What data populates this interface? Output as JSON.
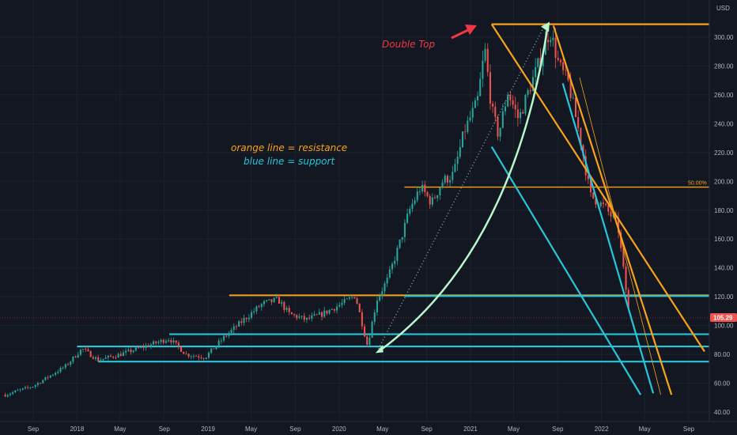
{
  "chart_data": {
    "type": "candlestick",
    "currency_label": "USD",
    "y_axis": {
      "ticks": [
        40,
        60,
        80,
        100,
        120,
        140,
        160,
        180,
        200,
        220,
        240,
        260,
        280,
        300
      ],
      "tick_labels": [
        "40.00",
        "60.00",
        "80.00",
        "100.00",
        "120.00",
        "140.00",
        "160.00",
        "180.00",
        "200.00",
        "220.00",
        "240.00",
        "260.00",
        "280.00",
        "300.00"
      ],
      "ylim": [
        35,
        318
      ]
    },
    "x_axis": {
      "tick_labels": [
        "Sep",
        "2018",
        "May",
        "Sep",
        "2019",
        "May",
        "Sep",
        "2020",
        "May",
        "Sep",
        "2021",
        "May",
        "Sep",
        "2022",
        "May",
        "Sep"
      ],
      "tick_dates": [
        "2017-09-01",
        "2018-01-01",
        "2018-05-01",
        "2018-09-01",
        "2019-01-01",
        "2019-05-01",
        "2019-09-01",
        "2020-01-01",
        "2020-05-01",
        "2020-09-01",
        "2021-01-01",
        "2021-05-01",
        "2021-09-01",
        "2022-01-01",
        "2022-05-01",
        "2022-09-01"
      ]
    },
    "last_price": "105.29",
    "fib_label": "50.00%",
    "colors": {
      "background": "#131722",
      "up": "#26a69a",
      "down": "#ef5350",
      "resistance": "#f7a21b",
      "support": "#26c6da",
      "arc": "#b9f6ca",
      "annotation_red": "#f23645"
    },
    "price_path": [
      [
        "2017-06-15",
        52
      ],
      [
        "2017-09-01",
        58
      ],
      [
        "2017-12-01",
        72
      ],
      [
        "2018-01-15",
        84
      ],
      [
        "2018-03-01",
        76
      ],
      [
        "2018-05-01",
        80
      ],
      [
        "2018-07-15",
        86
      ],
      [
        "2018-09-15",
        91
      ],
      [
        "2018-11-01",
        80
      ],
      [
        "2018-12-24",
        78
      ],
      [
        "2019-02-15",
        92
      ],
      [
        "2019-04-15",
        105
      ],
      [
        "2019-06-01",
        115
      ],
      [
        "2019-07-15",
        118
      ],
      [
        "2019-08-15",
        108
      ],
      [
        "2019-10-01",
        104
      ],
      [
        "2019-11-15",
        108
      ],
      [
        "2020-01-15",
        116
      ],
      [
        "2020-02-15",
        121
      ],
      [
        "2020-03-20",
        86
      ],
      [
        "2020-04-15",
        118
      ],
      [
        "2020-05-15",
        132
      ],
      [
        "2020-06-15",
        155
      ],
      [
        "2020-07-15",
        180
      ],
      [
        "2020-08-15",
        196
      ],
      [
        "2020-09-15",
        185
      ],
      [
        "2020-10-15",
        200
      ],
      [
        "2020-11-15",
        205
      ],
      [
        "2020-12-15",
        235
      ],
      [
        "2021-01-20",
        255
      ],
      [
        "2021-02-10",
        292
      ],
      [
        "2021-03-01",
        250
      ],
      [
        "2021-03-20",
        232
      ],
      [
        "2021-04-15",
        262
      ],
      [
        "2021-05-15",
        243
      ],
      [
        "2021-06-15",
        265
      ],
      [
        "2021-07-15",
        285
      ],
      [
        "2021-08-10",
        305
      ],
      [
        "2021-09-05",
        280
      ],
      [
        "2021-10-01",
        268
      ],
      [
        "2021-11-01",
        232
      ],
      [
        "2021-12-01",
        190
      ],
      [
        "2022-01-10",
        182
      ],
      [
        "2022-02-15",
        170
      ],
      [
        "2022-03-10",
        125
      ],
      [
        "2022-03-20",
        105
      ]
    ],
    "horizontal_levels": [
      {
        "kind": "resistance",
        "from": "2019-03-01",
        "value": 121
      },
      {
        "kind": "fib_50",
        "from": "2020-07-01",
        "value": 196
      },
      {
        "kind": "top",
        "from": "2021-03-01",
        "value": 309
      },
      {
        "kind": "support",
        "from": "2020-07-01",
        "value": 120.5
      },
      {
        "kind": "support",
        "from": "2018-09-15",
        "value": 94
      },
      {
        "kind": "support",
        "from": "2018-01-01",
        "value": 85.5
      },
      {
        "kind": "support",
        "from": "2018-03-01",
        "value": 75
      }
    ],
    "trendlines": [
      {
        "kind": "resistance",
        "from": [
          "2021-03-01",
          309
        ],
        "to": [
          "2022-10-15",
          82
        ]
      },
      {
        "kind": "resistance",
        "from": [
          "2021-08-20",
          308
        ],
        "to": [
          "2022-07-15",
          52
        ]
      },
      {
        "kind": "resistance_thin",
        "from": [
          "2021-11-01",
          272
        ],
        "to": [
          "2022-06-15",
          52
        ]
      },
      {
        "kind": "support",
        "from": [
          "2021-03-01",
          224
        ],
        "to": [
          "2022-04-20",
          52
        ]
      },
      {
        "kind": "support",
        "from": [
          "2021-09-15",
          268
        ],
        "to": [
          "2022-05-25",
          53
        ]
      },
      {
        "kind": "dotted",
        "from": [
          "2020-04-20",
          84
        ],
        "to": [
          "2021-07-20",
          305
        ]
      }
    ],
    "annotations": {
      "double_top": "Double Top",
      "legend_resistance": "orange line = resistance",
      "legend_support": "blue line = support"
    },
    "grid": true
  }
}
